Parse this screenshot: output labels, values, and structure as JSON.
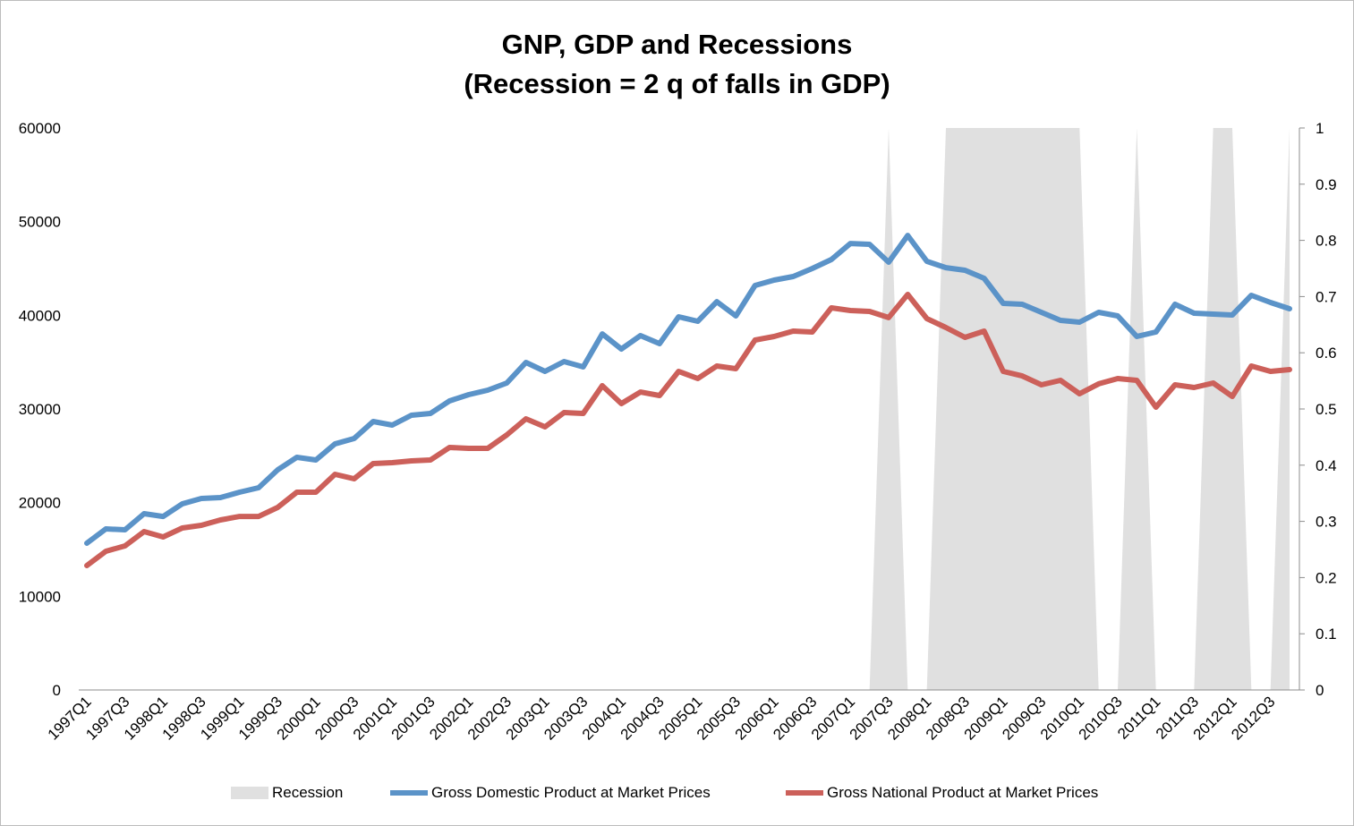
{
  "chart_data": {
    "type": "line",
    "title": "GNP, GDP and Recessions",
    "subtitle": "(Recession = 2 q of falls in GDP)",
    "x": [
      "1997Q1",
      "1997Q2",
      "1997Q3",
      "1997Q4",
      "1998Q1",
      "1998Q2",
      "1998Q3",
      "1998Q4",
      "1999Q1",
      "1999Q2",
      "1999Q3",
      "1999Q4",
      "2000Q1",
      "2000Q2",
      "2000Q3",
      "2000Q4",
      "2001Q1",
      "2001Q2",
      "2001Q3",
      "2001Q4",
      "2002Q1",
      "2002Q2",
      "2002Q3",
      "2002Q4",
      "2003Q1",
      "2003Q2",
      "2003Q3",
      "2003Q4",
      "2004Q1",
      "2004Q2",
      "2004Q3",
      "2004Q4",
      "2005Q1",
      "2005Q2",
      "2005Q3",
      "2005Q4",
      "2006Q1",
      "2006Q2",
      "2006Q3",
      "2006Q4",
      "2007Q1",
      "2007Q2",
      "2007Q3",
      "2007Q4",
      "2008Q1",
      "2008Q2",
      "2008Q3",
      "2008Q4",
      "2009Q1",
      "2009Q2",
      "2009Q3",
      "2009Q4",
      "2010Q1",
      "2010Q2",
      "2010Q3",
      "2010Q4",
      "2011Q1",
      "2011Q2",
      "2011Q3",
      "2011Q4",
      "2012Q1",
      "2012Q2",
      "2012Q3",
      "2012Q4"
    ],
    "x_tick_labels": [
      "1997Q1",
      "1997Q3",
      "1998Q1",
      "1998Q3",
      "1999Q1",
      "1999Q3",
      "2000Q1",
      "2000Q3",
      "2001Q1",
      "2001Q3",
      "2002Q1",
      "2002Q3",
      "2003Q1",
      "2003Q3",
      "2004Q1",
      "2004Q3",
      "2005Q1",
      "2005Q3",
      "2006Q1",
      "2006Q3",
      "2007Q1",
      "2007Q3",
      "2008Q1",
      "2008Q3",
      "2009Q1",
      "2009Q3",
      "2010Q1",
      "2010Q3",
      "2011Q1",
      "2011Q3",
      "2012Q1",
      "2012Q3"
    ],
    "ylim": [
      0,
      60000
    ],
    "y_ticks": [
      "0",
      "10000",
      "20000",
      "30000",
      "40000",
      "50000",
      "60000"
    ],
    "y2lim": [
      0,
      1
    ],
    "y2_ticks": [
      "0",
      "0.1",
      "0.2",
      "0.3",
      "0.4",
      "0.5",
      "0.6",
      "0.7",
      "0.8",
      "0.9",
      "1"
    ],
    "grid": false,
    "legend_position": "bottom",
    "series": [
      {
        "name": "Recession",
        "type": "area",
        "axis": "right",
        "color": "#e0e0e0",
        "values": [
          0,
          0,
          0,
          0,
          0,
          0,
          0,
          0,
          0,
          0,
          0,
          0,
          0,
          0,
          0,
          0,
          0,
          0,
          0,
          0,
          0,
          0,
          0,
          0,
          0,
          0,
          0,
          0,
          0,
          0,
          0,
          0,
          0,
          0,
          0,
          0,
          0,
          0,
          0,
          0,
          0,
          0,
          1,
          0,
          0,
          1,
          1,
          1,
          1,
          1,
          1,
          1,
          1,
          0,
          0,
          1,
          0,
          0,
          0,
          1,
          1,
          0,
          0,
          1
        ]
      },
      {
        "name": "Gross Domestic Product at Market Prices",
        "type": "line",
        "axis": "left",
        "color": "#5b93c8",
        "values": [
          15670,
          17200,
          17100,
          18820,
          18530,
          19870,
          20450,
          20540,
          21110,
          21590,
          23500,
          24840,
          24550,
          26270,
          26850,
          28660,
          28280,
          29330,
          29520,
          30860,
          31530,
          32010,
          32770,
          34970,
          34010,
          35060,
          34490,
          38020,
          36400,
          37830,
          36970,
          39840,
          39360,
          41460,
          39940,
          43180,
          43760,
          44140,
          45000,
          45960,
          47670,
          47580,
          45670,
          48530,
          45760,
          45090,
          44810,
          43950,
          41270,
          41180,
          40320,
          39460,
          39270,
          40320,
          39940,
          37740,
          38220,
          41180,
          40220,
          40130,
          40030,
          42130,
          41370,
          40700
        ]
      },
      {
        "name": "Gross National Product at Market Prices",
        "type": "line",
        "axis": "left",
        "color": "#cc605a",
        "values": [
          13280,
          14810,
          15380,
          16910,
          16340,
          17290,
          17580,
          18150,
          18530,
          18530,
          19490,
          21110,
          21110,
          23030,
          22550,
          24170,
          24270,
          24460,
          24550,
          25890,
          25800,
          25800,
          27230,
          28950,
          28090,
          29620,
          29520,
          32480,
          30570,
          31810,
          31430,
          34010,
          33250,
          34590,
          34300,
          37360,
          37740,
          38310,
          38220,
          40800,
          40510,
          40410,
          39750,
          42230,
          39650,
          38690,
          37640,
          38310,
          34010,
          33530,
          32580,
          33060,
          31620,
          32680,
          33250,
          33060,
          30190,
          32580,
          32290,
          32770,
          31340,
          34590,
          34010,
          34200
        ]
      }
    ]
  }
}
